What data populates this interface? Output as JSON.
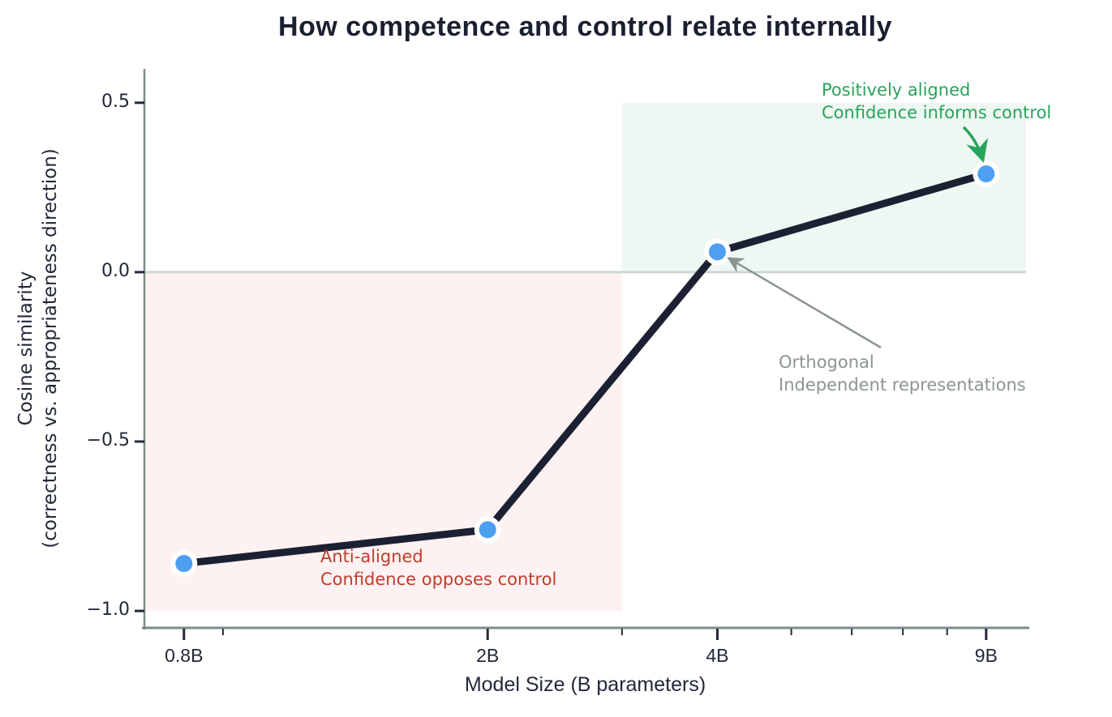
{
  "title": "How competence and control relate internally",
  "colors": {
    "marker_blue": "#4d9ff2",
    "line_dark": "#1c2033",
    "text_dark": "#232839",
    "title_dark": "#1b2030",
    "green": "#27a35c",
    "green_region": "#eff7f2",
    "red": "#c23b2d",
    "red_region": "#fdf2f1",
    "gray": "#8b9492",
    "zero_line": "#cdd7d2",
    "spine": "#7c8b89",
    "background": "#ffffff"
  },
  "chart_data": {
    "type": "line",
    "title": "How competence and control relate internally",
    "xlabel": "Model Size (B parameters)",
    "ylabel_lines": [
      "Cosine similarity",
      "(correctness vs. appropriateness direction)"
    ],
    "x_scale": "log",
    "grid": false,
    "legend": false,
    "series": [
      {
        "name": "cosine-similarity",
        "x": [
          0.8,
          2,
          4,
          9
        ],
        "values": [
          -0.86,
          -0.76,
          0.06,
          0.29
        ]
      }
    ],
    "x_ticks": [
      0.8,
      2,
      4,
      9
    ],
    "x_tick_labels": [
      "0.8B",
      "2B",
      "4B",
      "9B"
    ],
    "x_minor_ticks": [
      0.9,
      3,
      5,
      6,
      7,
      8
    ],
    "y_ticks": [
      0.5,
      0.0,
      -0.5,
      -1.0
    ],
    "y_tick_labels": [
      "0.5",
      "0.0",
      "−0.5",
      "−1.0"
    ],
    "xlim": [
      0.71,
      10.15
    ],
    "ylim": [
      -1.05,
      0.6
    ],
    "zero_line": 0,
    "regions": [
      {
        "label": "anti-aligned-zone",
        "x0": 0.71,
        "x1": 3,
        "y0": -1.0,
        "y1": 0,
        "color_key": "red_region"
      },
      {
        "label": "positively-aligned-zone",
        "x0": 3,
        "x1": 10.15,
        "y0": 0,
        "y1": 0.5,
        "color_key": "green_region"
      }
    ],
    "annotations": [
      {
        "id": "positive",
        "lines": [
          "Positively aligned",
          "Confidence informs control"
        ],
        "color_key": "green",
        "points_at": {
          "x": 9,
          "y": 0.29
        }
      },
      {
        "id": "orthogonal",
        "lines": [
          "Orthogonal",
          "Independent representations"
        ],
        "color_key": "gray",
        "points_at": {
          "x": 4,
          "y": 0.06
        }
      },
      {
        "id": "anti",
        "lines": [
          "Anti-aligned",
          "Confidence opposes control"
        ],
        "color_key": "red",
        "points_at": null
      }
    ]
  }
}
